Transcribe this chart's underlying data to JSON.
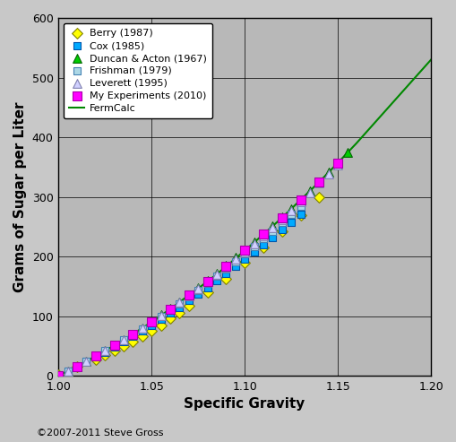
{
  "title": "",
  "xlabel": "Specific Gravity",
  "ylabel": "Grams of Sugar per Liter",
  "xlim": [
    1.0,
    1.2
  ],
  "ylim": [
    0,
    600
  ],
  "xticks": [
    1.0,
    1.05,
    1.1,
    1.15,
    1.2
  ],
  "yticks": [
    0,
    100,
    200,
    300,
    400,
    500,
    600
  ],
  "fig_facecolor": "#c8c8c8",
  "plot_facecolor": "#b8b8b8",
  "grid_color": "#000000",
  "grid_linewidth": 0.5,
  "copyright": "©2007-2011 Steve Gross",
  "series": [
    {
      "name": "Berry (1987)",
      "color": "#ffff00",
      "edgecolor": "#808000",
      "marker": "D",
      "markersize": 6,
      "sg": [
        1.0,
        1.01,
        1.02,
        1.025,
        1.03,
        1.035,
        1.04,
        1.045,
        1.05,
        1.055,
        1.06,
        1.065,
        1.07,
        1.08,
        1.09,
        1.1,
        1.11,
        1.12,
        1.13,
        1.14
      ],
      "sugar": [
        2,
        15,
        28,
        35,
        42,
        50,
        58,
        67,
        76,
        85,
        96,
        106,
        117,
        140,
        163,
        190,
        215,
        242,
        270,
        300
      ]
    },
    {
      "name": "Cox (1985)",
      "color": "#00aaff",
      "edgecolor": "#0055aa",
      "marker": "s",
      "markersize": 6,
      "sg": [
        1.0,
        1.005,
        1.01,
        1.015,
        1.02,
        1.025,
        1.03,
        1.035,
        1.04,
        1.045,
        1.05,
        1.055,
        1.06,
        1.065,
        1.07,
        1.075,
        1.08,
        1.085,
        1.09,
        1.095,
        1.1,
        1.105,
        1.11,
        1.115,
        1.12,
        1.125,
        1.13
      ],
      "sugar": [
        0,
        8,
        16,
        24,
        32,
        40,
        48,
        57,
        66,
        75,
        85,
        95,
        105,
        115,
        126,
        137,
        148,
        159,
        171,
        183,
        195,
        207,
        219,
        232,
        245,
        258,
        271
      ]
    },
    {
      "name": "Duncan & Acton (1967)",
      "color": "#00cc00",
      "edgecolor": "#006600",
      "marker": "^",
      "markersize": 7,
      "sg": [
        1.0,
        1.005,
        1.01,
        1.015,
        1.02,
        1.025,
        1.03,
        1.035,
        1.04,
        1.045,
        1.05,
        1.055,
        1.06,
        1.065,
        1.07,
        1.075,
        1.08,
        1.085,
        1.09,
        1.095,
        1.1,
        1.105,
        1.11,
        1.115,
        1.12,
        1.125,
        1.13,
        1.135,
        1.14,
        1.145,
        1.15,
        1.155
      ],
      "sugar": [
        0,
        8,
        16,
        24,
        33,
        42,
        51,
        60,
        70,
        80,
        91,
        102,
        113,
        124,
        136,
        148,
        160,
        172,
        185,
        198,
        211,
        224,
        238,
        252,
        266,
        280,
        295,
        310,
        325,
        341,
        357,
        374
      ]
    },
    {
      "name": "Frishman (1979)",
      "color": "#add8e6",
      "edgecolor": "#4682b4",
      "marker": "s",
      "markersize": 6,
      "sg": [
        1.0,
        1.005,
        1.01,
        1.015,
        1.02,
        1.025,
        1.03,
        1.035,
        1.04,
        1.045,
        1.05,
        1.055,
        1.06,
        1.065,
        1.07,
        1.075,
        1.08,
        1.085,
        1.09,
        1.095,
        1.1,
        1.105,
        1.11,
        1.115,
        1.12,
        1.125,
        1.13
      ],
      "sugar": [
        0,
        8,
        16,
        24,
        33,
        42,
        51,
        60,
        69,
        79,
        89,
        99,
        110,
        121,
        132,
        143,
        155,
        167,
        179,
        191,
        204,
        217,
        230,
        243,
        257,
        271,
        285
      ]
    },
    {
      "name": "Leverett (1995)",
      "color": "#d0d0ff",
      "edgecolor": "#8080b0",
      "marker": "^",
      "markersize": 7,
      "sg": [
        1.0,
        1.005,
        1.01,
        1.015,
        1.02,
        1.025,
        1.03,
        1.035,
        1.04,
        1.045,
        1.05,
        1.055,
        1.06,
        1.065,
        1.07,
        1.075,
        1.08,
        1.085,
        1.09,
        1.095,
        1.1,
        1.105,
        1.11,
        1.115,
        1.12,
        1.125,
        1.13,
        1.135,
        1.14,
        1.145,
        1.15
      ],
      "sugar": [
        0,
        8,
        16,
        24,
        33,
        42,
        51,
        60,
        70,
        80,
        90,
        101,
        112,
        123,
        134,
        146,
        158,
        170,
        182,
        195,
        208,
        221,
        235,
        248,
        262,
        277,
        292,
        307,
        323,
        338,
        354
      ]
    },
    {
      "name": "My Experiments (2010)",
      "color": "#ff00ff",
      "edgecolor": "#aa00aa",
      "marker": "s",
      "markersize": 7,
      "sg": [
        1.0,
        1.01,
        1.02,
        1.03,
        1.04,
        1.05,
        1.06,
        1.07,
        1.08,
        1.09,
        1.1,
        1.11,
        1.12,
        1.13,
        1.14,
        1.15
      ],
      "sugar": [
        0,
        16,
        33,
        51,
        70,
        90,
        112,
        135,
        158,
        183,
        210,
        237,
        265,
        295,
        325,
        357
      ]
    }
  ],
  "fermcalc": {
    "color": "#008800",
    "linewidth": 1.5,
    "sg": [
      1.0,
      1.01,
      1.02,
      1.03,
      1.04,
      1.05,
      1.06,
      1.07,
      1.08,
      1.09,
      1.1,
      1.11,
      1.12,
      1.13,
      1.14,
      1.15,
      1.16,
      1.17,
      1.18,
      1.19,
      1.2
    ],
    "sugar": [
      0,
      16,
      33,
      51,
      70,
      90,
      112,
      135,
      158,
      183,
      210,
      237,
      265,
      295,
      325,
      357,
      390,
      425,
      460,
      495,
      530
    ]
  }
}
